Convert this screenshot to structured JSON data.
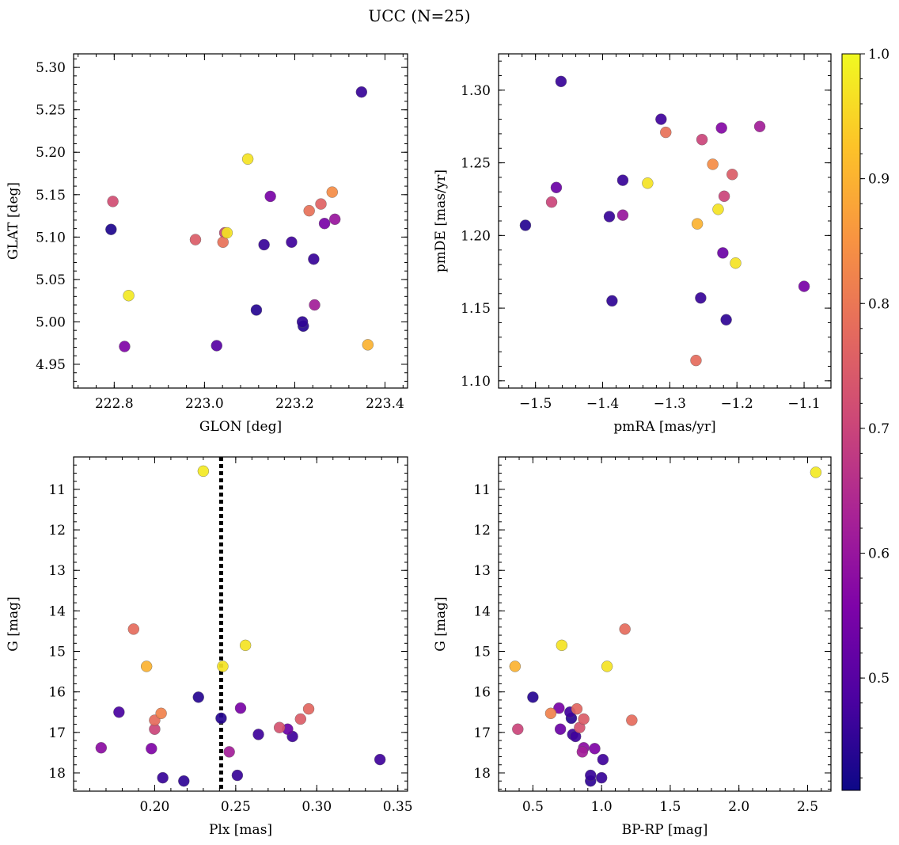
{
  "figure": {
    "title": "UCC (N=25)"
  },
  "colorbar": {
    "range": [
      0.41,
      1.0
    ],
    "ticks": [
      0.5,
      0.6,
      0.7,
      0.8,
      0.9,
      1.0
    ],
    "tick_labels": [
      "0.5",
      "0.6",
      "0.7",
      "0.8",
      "0.9",
      "1.0"
    ],
    "colormap": "plasma"
  },
  "chart_data": [
    {
      "type": "scatter",
      "id": "glon-glat",
      "xlabel": "GLON [deg]",
      "ylabel": "GLAT [deg]",
      "xlim": [
        222.71,
        223.45
      ],
      "ylim": [
        4.922,
        5.316
      ],
      "xticks": [
        222.8,
        223.0,
        223.2,
        223.4
      ],
      "xtick_labels": [
        "222.8",
        "223.0",
        "223.2",
        "223.4"
      ],
      "yticks": [
        4.95,
        5.0,
        5.05,
        5.1,
        5.15,
        5.2,
        5.25,
        5.3
      ],
      "ytick_labels": [
        "4.95",
        "5.00",
        "5.05",
        "5.10",
        "5.15",
        "5.20",
        "5.25",
        "5.30"
      ],
      "points": [
        {
          "x": 222.797,
          "y": 5.142,
          "c": 0.72
        },
        {
          "x": 222.793,
          "y": 5.109,
          "c": 0.43
        },
        {
          "x": 222.832,
          "y": 5.031,
          "c": 0.98
        },
        {
          "x": 222.823,
          "y": 4.971,
          "c": 0.56
        },
        {
          "x": 222.98,
          "y": 5.097,
          "c": 0.75
        },
        {
          "x": 223.041,
          "y": 5.094,
          "c": 0.79
        },
        {
          "x": 223.045,
          "y": 5.105,
          "c": 0.7
        },
        {
          "x": 223.05,
          "y": 5.105,
          "c": 0.97
        },
        {
          "x": 223.027,
          "y": 4.972,
          "c": 0.5
        },
        {
          "x": 223.096,
          "y": 5.192,
          "c": 0.97
        },
        {
          "x": 223.146,
          "y": 5.148,
          "c": 0.55
        },
        {
          "x": 223.132,
          "y": 5.091,
          "c": 0.46
        },
        {
          "x": 223.115,
          "y": 5.014,
          "c": 0.44
        },
        {
          "x": 223.193,
          "y": 5.094,
          "c": 0.47
        },
        {
          "x": 223.232,
          "y": 5.131,
          "c": 0.79
        },
        {
          "x": 223.258,
          "y": 5.139,
          "c": 0.76
        },
        {
          "x": 223.283,
          "y": 5.153,
          "c": 0.84
        },
        {
          "x": 223.266,
          "y": 5.116,
          "c": 0.55
        },
        {
          "x": 223.289,
          "y": 5.121,
          "c": 0.6
        },
        {
          "x": 223.242,
          "y": 5.074,
          "c": 0.46
        },
        {
          "x": 223.217,
          "y": 5.0,
          "c": 0.45
        },
        {
          "x": 223.219,
          "y": 4.995,
          "c": 0.44
        },
        {
          "x": 223.244,
          "y": 5.02,
          "c": 0.62
        },
        {
          "x": 223.348,
          "y": 5.271,
          "c": 0.46
        },
        {
          "x": 223.362,
          "y": 4.973,
          "c": 0.9
        }
      ]
    },
    {
      "type": "scatter",
      "id": "pmra-pmde",
      "xlabel": "pmRA [mas/yr]",
      "ylabel": "pmDE [mas/yr]",
      "xlim": [
        -1.555,
        -1.06
      ],
      "ylim": [
        1.095,
        1.325
      ],
      "xticks": [
        -1.5,
        -1.4,
        -1.3,
        -1.2,
        -1.1
      ],
      "xtick_labels": [
        "−1.5",
        "−1.4",
        "−1.3",
        "−1.2",
        "−1.1"
      ],
      "yticks": [
        1.1,
        1.15,
        1.2,
        1.25,
        1.3
      ],
      "ytick_labels": [
        "1.10",
        "1.15",
        "1.20",
        "1.25",
        "1.30"
      ],
      "points": [
        {
          "x": -1.462,
          "y": 1.306,
          "c": 0.46
        },
        {
          "x": -1.515,
          "y": 1.207,
          "c": 0.44
        },
        {
          "x": -1.469,
          "y": 1.233,
          "c": 0.53
        },
        {
          "x": -1.476,
          "y": 1.223,
          "c": 0.7
        },
        {
          "x": -1.39,
          "y": 1.213,
          "c": 0.46
        },
        {
          "x": -1.37,
          "y": 1.214,
          "c": 0.6
        },
        {
          "x": -1.37,
          "y": 1.238,
          "c": 0.46
        },
        {
          "x": -1.386,
          "y": 1.155,
          "c": 0.45
        },
        {
          "x": -1.333,
          "y": 1.236,
          "c": 0.97
        },
        {
          "x": -1.313,
          "y": 1.28,
          "c": 0.47
        },
        {
          "x": -1.306,
          "y": 1.271,
          "c": 0.79
        },
        {
          "x": -1.252,
          "y": 1.266,
          "c": 0.7
        },
        {
          "x": -1.223,
          "y": 1.274,
          "c": 0.57
        },
        {
          "x": -1.166,
          "y": 1.275,
          "c": 0.62
        },
        {
          "x": -1.236,
          "y": 1.249,
          "c": 0.84
        },
        {
          "x": -1.207,
          "y": 1.242,
          "c": 0.75
        },
        {
          "x": -1.219,
          "y": 1.227,
          "c": 0.7
        },
        {
          "x": -1.228,
          "y": 1.218,
          "c": 0.97
        },
        {
          "x": -1.259,
          "y": 1.208,
          "c": 0.9
        },
        {
          "x": -1.221,
          "y": 1.188,
          "c": 0.53
        },
        {
          "x": -1.202,
          "y": 1.181,
          "c": 0.97
        },
        {
          "x": -1.254,
          "y": 1.157,
          "c": 0.46
        },
        {
          "x": -1.216,
          "y": 1.142,
          "c": 0.45
        },
        {
          "x": -1.261,
          "y": 1.114,
          "c": 0.78
        },
        {
          "x": -1.1,
          "y": 1.165,
          "c": 0.55
        }
      ]
    },
    {
      "type": "scatter",
      "id": "plx-g",
      "xlabel": "Plx [mas]",
      "ylabel": "G [mag]",
      "xlim": [
        0.15,
        0.356
      ],
      "ylim": [
        18.45,
        10.2
      ],
      "y_inverted": true,
      "vline": {
        "x": 0.241,
        "style": "dotted"
      },
      "xticks": [
        0.2,
        0.25,
        0.3,
        0.35
      ],
      "xtick_labels": [
        "0.20",
        "0.25",
        "0.30",
        "0.35"
      ],
      "yticks": [
        11,
        12,
        13,
        14,
        15,
        16,
        17,
        18
      ],
      "ytick_labels": [
        "11",
        "12",
        "13",
        "14",
        "15",
        "16",
        "17",
        "18"
      ],
      "points": [
        {
          "x": 0.23,
          "y": 10.55,
          "c": 0.98
        },
        {
          "x": 0.187,
          "y": 14.45,
          "c": 0.78
        },
        {
          "x": 0.256,
          "y": 14.85,
          "c": 0.97
        },
        {
          "x": 0.195,
          "y": 15.37,
          "c": 0.9
        },
        {
          "x": 0.242,
          "y": 15.37,
          "c": 0.97
        },
        {
          "x": 0.227,
          "y": 16.13,
          "c": 0.44
        },
        {
          "x": 0.178,
          "y": 16.5,
          "c": 0.48
        },
        {
          "x": 0.204,
          "y": 16.53,
          "c": 0.82
        },
        {
          "x": 0.2,
          "y": 16.7,
          "c": 0.78
        },
        {
          "x": 0.2,
          "y": 16.92,
          "c": 0.7
        },
        {
          "x": 0.241,
          "y": 16.65,
          "c": 0.44
        },
        {
          "x": 0.253,
          "y": 16.4,
          "c": 0.55
        },
        {
          "x": 0.295,
          "y": 16.42,
          "c": 0.77
        },
        {
          "x": 0.29,
          "y": 16.67,
          "c": 0.75
        },
        {
          "x": 0.277,
          "y": 16.88,
          "c": 0.73
        },
        {
          "x": 0.282,
          "y": 16.92,
          "c": 0.53
        },
        {
          "x": 0.264,
          "y": 17.05,
          "c": 0.47
        },
        {
          "x": 0.285,
          "y": 17.1,
          "c": 0.47
        },
        {
          "x": 0.167,
          "y": 17.38,
          "c": 0.58
        },
        {
          "x": 0.198,
          "y": 17.4,
          "c": 0.56
        },
        {
          "x": 0.246,
          "y": 17.48,
          "c": 0.62
        },
        {
          "x": 0.339,
          "y": 17.67,
          "c": 0.47
        },
        {
          "x": 0.205,
          "y": 18.12,
          "c": 0.46
        },
        {
          "x": 0.218,
          "y": 18.2,
          "c": 0.45
        },
        {
          "x": 0.251,
          "y": 18.06,
          "c": 0.46
        }
      ]
    },
    {
      "type": "scatter",
      "id": "bprp-g",
      "xlabel": "BP-RP [mag]",
      "ylabel": "G [mag]",
      "xlim": [
        0.25,
        2.67
      ],
      "ylim": [
        18.45,
        10.2
      ],
      "y_inverted": true,
      "xticks": [
        0.5,
        1.0,
        1.5,
        2.0,
        2.5
      ],
      "xtick_labels": [
        "0.5",
        "1.0",
        "1.5",
        "2.0",
        "2.5"
      ],
      "yticks": [
        11,
        12,
        13,
        14,
        15,
        16,
        17,
        18
      ],
      "ytick_labels": [
        "11",
        "12",
        "13",
        "14",
        "15",
        "16",
        "17",
        "18"
      ],
      "points": [
        {
          "x": 2.56,
          "y": 10.58,
          "c": 0.98
        },
        {
          "x": 1.17,
          "y": 14.45,
          "c": 0.78
        },
        {
          "x": 0.71,
          "y": 14.85,
          "c": 0.97
        },
        {
          "x": 0.37,
          "y": 15.37,
          "c": 0.9
        },
        {
          "x": 1.04,
          "y": 15.37,
          "c": 0.97
        },
        {
          "x": 0.5,
          "y": 16.13,
          "c": 0.44
        },
        {
          "x": 0.69,
          "y": 16.4,
          "c": 0.55
        },
        {
          "x": 0.77,
          "y": 16.5,
          "c": 0.47
        },
        {
          "x": 0.82,
          "y": 16.42,
          "c": 0.77
        },
        {
          "x": 0.63,
          "y": 16.53,
          "c": 0.82
        },
        {
          "x": 0.78,
          "y": 16.65,
          "c": 0.44
        },
        {
          "x": 0.87,
          "y": 16.67,
          "c": 0.75
        },
        {
          "x": 1.22,
          "y": 16.7,
          "c": 0.78
        },
        {
          "x": 0.84,
          "y": 16.88,
          "c": 0.73
        },
        {
          "x": 0.39,
          "y": 16.92,
          "c": 0.7
        },
        {
          "x": 0.7,
          "y": 16.92,
          "c": 0.53
        },
        {
          "x": 0.79,
          "y": 17.05,
          "c": 0.47
        },
        {
          "x": 0.81,
          "y": 17.1,
          "c": 0.47
        },
        {
          "x": 0.87,
          "y": 17.38,
          "c": 0.58
        },
        {
          "x": 0.95,
          "y": 17.4,
          "c": 0.56
        },
        {
          "x": 0.86,
          "y": 17.48,
          "c": 0.62
        },
        {
          "x": 1.01,
          "y": 17.67,
          "c": 0.47
        },
        {
          "x": 0.92,
          "y": 18.06,
          "c": 0.46
        },
        {
          "x": 1.0,
          "y": 18.12,
          "c": 0.46
        },
        {
          "x": 0.92,
          "y": 18.2,
          "c": 0.45
        }
      ]
    }
  ]
}
